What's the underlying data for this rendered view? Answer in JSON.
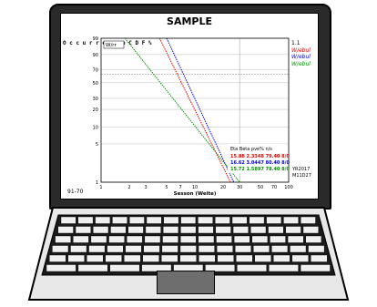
{
  "screen": {
    "title": "SAMPLE",
    "ylabel": "O c c u r r e n c e C D F %",
    "corner_label": "91-70",
    "plot_box_label": "W/rr",
    "legend": [
      "W/ebul",
      "W/ebul",
      "W/ebul"
    ],
    "legend_colors": [
      "#e00000",
      "#0000d0",
      "#009000"
    ],
    "legend_header": "1.1",
    "table": {
      "headers": [
        "Eta",
        "Beta",
        "pve%",
        "n/s"
      ],
      "rows": [
        {
          "text": "15.88 2.3348 79.40 8/0",
          "color": "#e00000"
        },
        {
          "text": "16.62 3.0447 80.40 8/0",
          "color": "#0000d0"
        },
        {
          "text": "15.72 1.5897 78.40 8/0",
          "color": "#009000"
        }
      ],
      "side_labels": [
        "YR2017",
        "M11D27"
      ]
    }
  },
  "chart_data": {
    "type": "line",
    "title": "SAMPLE",
    "xlabel": "Sesson (Weite)",
    "ylabel": "Occurrence CDF %",
    "x_scale": "log",
    "x_ticks": [
      "1",
      "2",
      "3",
      "5",
      "7",
      "10",
      "20",
      "30",
      "50",
      "70",
      "100"
    ],
    "y_ticks": [
      "1",
      "5",
      "10",
      "20",
      "30",
      "50",
      "70",
      "90",
      "99"
    ],
    "series": [
      {
        "name": "W/ebul",
        "color": "#e00000",
        "x": [
          4.2,
          24.0
        ],
        "y": [
          99,
          1
        ]
      },
      {
        "name": "W/ebul",
        "color": "#0000d0",
        "x": [
          5.0,
          26.0
        ],
        "y": [
          99,
          1
        ]
      },
      {
        "name": "W/ebul",
        "color": "#009000",
        "x": [
          1.8,
          30.0
        ],
        "y": [
          99,
          1
        ]
      }
    ],
    "grid": true
  }
}
